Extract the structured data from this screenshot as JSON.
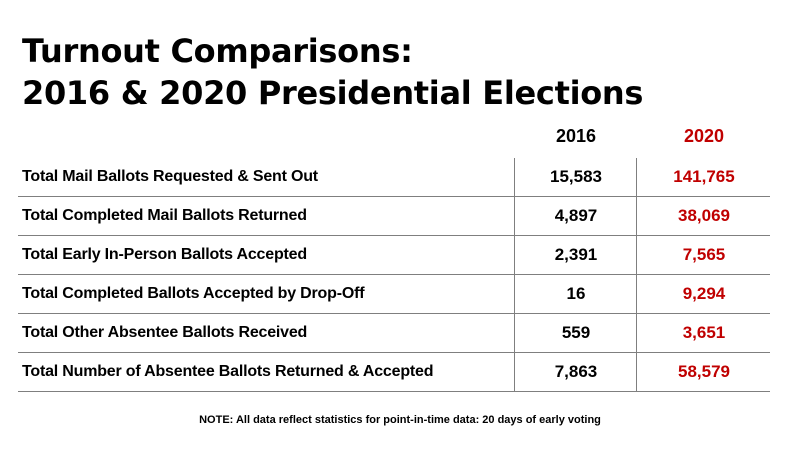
{
  "title": {
    "line1": "Turnout Comparisons:",
    "line2": "2016 & 2020 Presidential Elections"
  },
  "colors": {
    "highlight_2020": "#c00000",
    "text": "#000000",
    "rule": "#7f7f7f"
  },
  "table": {
    "columns": [
      "",
      "2016",
      "2020"
    ],
    "rows": [
      {
        "label": "Total Mail Ballots Requested & Sent Out",
        "v2016": "15,583",
        "v2020": "141,765"
      },
      {
        "label": "Total Completed Mail Ballots Returned",
        "v2016": "4,897",
        "v2020": "38,069"
      },
      {
        "label": "Total Early In-Person Ballots Accepted",
        "v2016": "2,391",
        "v2020": "7,565"
      },
      {
        "label": "Total Completed Ballots Accepted by Drop-Off",
        "v2016": "16",
        "v2020": "9,294"
      },
      {
        "label": "Total Other Absentee Ballots Received",
        "v2016": "559",
        "v2020": "3,651"
      },
      {
        "label": "Total Number of Absentee Ballots Returned & Accepted",
        "v2016": "7,863",
        "v2020": "58,579"
      }
    ]
  },
  "note": "NOTE: All data reflect statistics for point-in-time data: 20 days of early voting"
}
